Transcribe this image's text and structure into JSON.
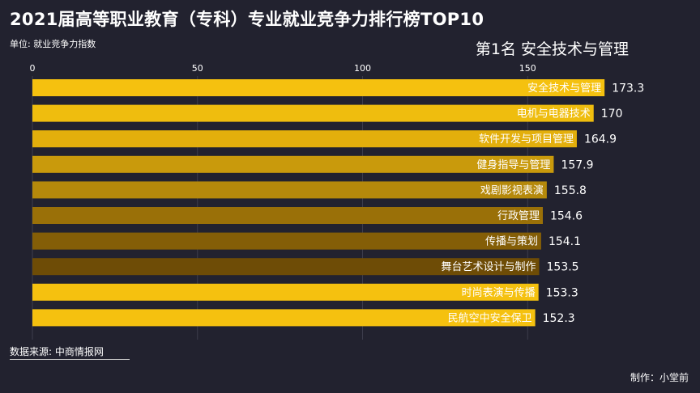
{
  "title": "2021届高等职业教育（专科）专业就业竞争力排行榜TOP10",
  "unit_label": "单位: 就业竞争力指数",
  "rank_label": "第1名 安全技术与管理",
  "source_label": "数据来源: 中商情报网",
  "maker_label": "制作：小堂前",
  "chart_data": {
    "type": "bar",
    "orientation": "horizontal",
    "categories": [
      "安全技术与管理",
      "电机与电器技术",
      "软件开发与项目管理",
      "健身指导与管理",
      "戏剧影视表演",
      "行政管理",
      "传播与策划",
      "舞台艺术设计与制作",
      "时尚表演与传播",
      "民航空中安全保卫"
    ],
    "values": [
      173.3,
      170,
      164.9,
      157.9,
      155.8,
      154.6,
      154.1,
      153.5,
      153.3,
      152.3
    ],
    "value_labels": [
      "173.3",
      "170",
      "164.9",
      "157.9",
      "155.8",
      "154.6",
      "154.1",
      "153.5",
      "153.3",
      "152.3"
    ],
    "colors": [
      "#f5c10f",
      "#efbd0e",
      "#e3af0c",
      "#c99a0c",
      "#b5890b",
      "#9a7008",
      "#845e07",
      "#6e4c06",
      "#f5c10f",
      "#f5c10f"
    ],
    "x_ticks": [
      0,
      50,
      100,
      150
    ],
    "xlim": [
      0,
      175
    ],
    "grid": true,
    "axis_position": "top"
  }
}
